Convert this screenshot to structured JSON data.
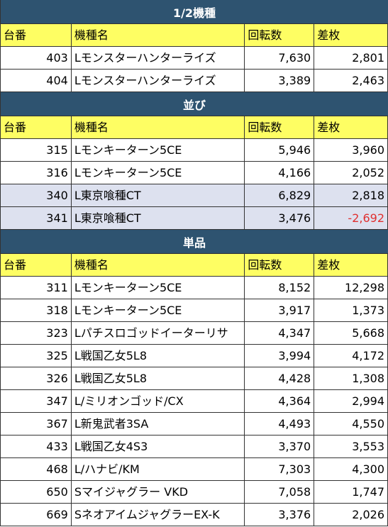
{
  "sections": [
    {
      "title": "1/2機種",
      "header": [
        "台番",
        "機種名",
        "回転数",
        "差枚"
      ],
      "rows": [
        [
          "403",
          "Lモンスターハンターライズ",
          "7,630",
          "2,801"
        ],
        [
          "404",
          "Lモンスターハンターライズ",
          "3,389",
          "2,463"
        ]
      ]
    },
    {
      "title": "並び",
      "header": [
        "台番",
        "機種名",
        "回転数",
        "差枚"
      ],
      "highlighted_rows": [
        2,
        3
      ],
      "rows": [
        [
          "315",
          "Lモンキーターン5CE",
          "5,946",
          "3,960"
        ],
        [
          "316",
          "Lモンキーターン5CE",
          "4,166",
          "2,052"
        ],
        [
          "340",
          "L東京喰種CT",
          "6,829",
          "2,818"
        ],
        [
          "341",
          "L東京喰種CT",
          "3,476",
          "-2,692"
        ]
      ]
    },
    {
      "title": "単品",
      "header": [
        "台番",
        "機種名",
        "回転数",
        "差枚"
      ],
      "rows": [
        [
          "311",
          "Lモンキーターン5CE",
          "8,152",
          "12,298"
        ],
        [
          "318",
          "Lモンキーターン5CE",
          "3,917",
          "1,373"
        ],
        [
          "323",
          "Lパチスロゴッドイーターリサ",
          "4,347",
          "5,668"
        ],
        [
          "325",
          "L戦国乙女5L8",
          "3,994",
          "4,172"
        ],
        [
          "326",
          "L戦国乙女5L8",
          "4,428",
          "1,308"
        ],
        [
          "347",
          "L/ミリオンゴッド/CX",
          "4,364",
          "2,994"
        ],
        [
          "367",
          "L新鬼武者3SA",
          "4,493",
          "4,550"
        ],
        [
          "433",
          "L戦国乙女4S3",
          "3,370",
          "3,553"
        ],
        [
          "468",
          "L/ハナビ/KM",
          "7,303",
          "4,300"
        ],
        [
          "650",
          "Sマイジャグラー VKD",
          "7,058",
          "1,747"
        ],
        [
          "669",
          "SネオアイムジャグラーEX-K",
          "3,376",
          "2,026"
        ]
      ]
    }
  ]
}
